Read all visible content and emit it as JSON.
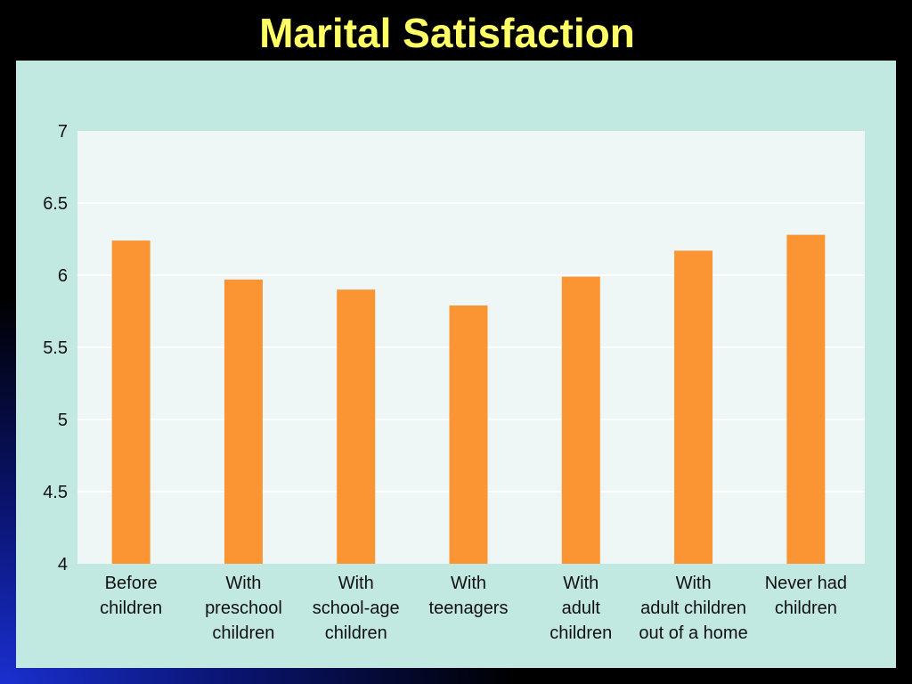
{
  "slide": {
    "title": "Marital Satisfaction"
  },
  "colors": {
    "bar": "#fb9433",
    "plot_bg": "#eef7f6",
    "panel_bg": "#c2e8e2",
    "grid": "#ffffff",
    "title": "#ffff66"
  },
  "chart_data": {
    "type": "bar",
    "title": "",
    "xlabel": "",
    "ylabel": "",
    "ylim": [
      4,
      7
    ],
    "yticks": [
      "7",
      "6.5",
      "6",
      "5.5",
      "5",
      "4.5",
      "4"
    ],
    "grid": true,
    "categories": [
      [
        "Before",
        "children"
      ],
      [
        "With",
        "preschool",
        "children"
      ],
      [
        "With",
        "school-age",
        "children"
      ],
      [
        "With",
        "teenagers"
      ],
      [
        "With",
        "adult",
        "children"
      ],
      [
        "With",
        "adult children",
        "out of a home"
      ],
      [
        "Never had",
        "children"
      ]
    ],
    "values": [
      6.24,
      5.97,
      5.9,
      5.79,
      5.99,
      6.17,
      6.28
    ]
  }
}
